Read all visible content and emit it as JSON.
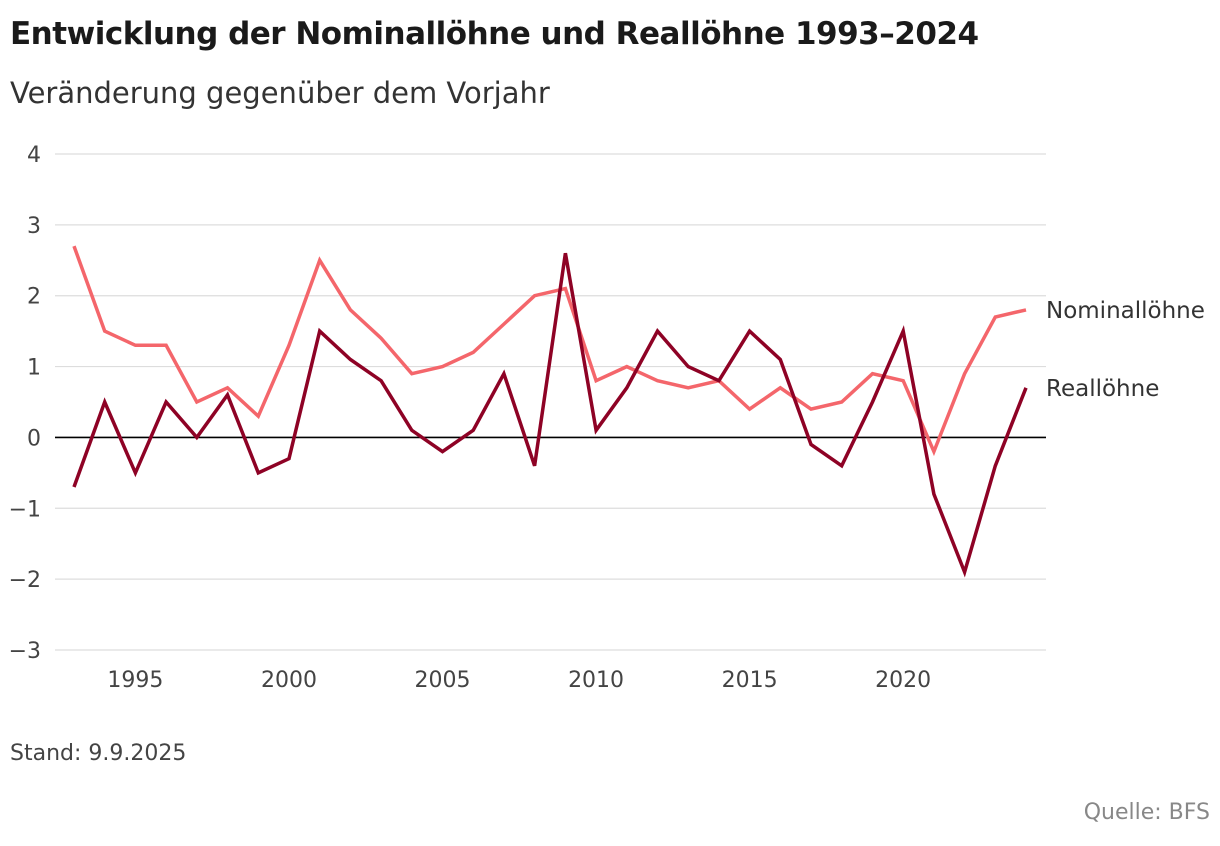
{
  "title": "Entwicklung der Nominallöhne und Reallöhne 1993–2024",
  "subtitle": "Veränderung gegenüber dem Vorjahr",
  "stand": "Stand: 9.9.2025",
  "source": "Quelle: BFS",
  "colors": {
    "nominal": "#f4666b",
    "real": "#8e0225",
    "grid": "#dddddd",
    "zero": "#000000"
  },
  "chart_data": {
    "type": "line",
    "title": "Entwicklung der Nominallöhne und Reallöhne 1993–2024",
    "subtitle": "Veränderung gegenüber dem Vorjahr",
    "xlabel": "",
    "ylabel": "",
    "ylim": [
      -3,
      4
    ],
    "xlim": [
      1993,
      2024
    ],
    "yticks": [
      4,
      3,
      2,
      1,
      0,
      -1,
      -2,
      -3
    ],
    "ytick_labels": [
      "4",
      "3",
      "2",
      "1",
      "0",
      "−1",
      "−2",
      "−3"
    ],
    "xticks": [
      1995,
      2000,
      2005,
      2010,
      2015,
      2020
    ],
    "xtick_labels": [
      "1995",
      "2000",
      "2005",
      "2010",
      "2015",
      "2020"
    ],
    "grid": true,
    "legend": "direct labels at right end of lines",
    "x": [
      1993,
      1994,
      1995,
      1996,
      1997,
      1998,
      1999,
      2000,
      2001,
      2002,
      2003,
      2004,
      2005,
      2006,
      2007,
      2008,
      2009,
      2010,
      2011,
      2012,
      2013,
      2014,
      2015,
      2016,
      2017,
      2018,
      2019,
      2020,
      2021,
      2022,
      2023,
      2024
    ],
    "series": [
      {
        "name": "Nominallöhne",
        "color": "#f4666b",
        "values": [
          2.7,
          1.5,
          1.3,
          1.3,
          0.5,
          0.7,
          0.3,
          1.3,
          2.5,
          1.8,
          1.4,
          0.9,
          1.0,
          1.2,
          1.6,
          2.0,
          2.1,
          0.8,
          1.0,
          0.8,
          0.7,
          0.8,
          0.4,
          0.7,
          0.4,
          0.5,
          0.9,
          0.8,
          -0.2,
          0.9,
          1.7,
          1.8
        ]
      },
      {
        "name": "Reallöhne",
        "color": "#8e0225",
        "values": [
          -0.7,
          0.5,
          -0.5,
          0.5,
          0.0,
          0.6,
          -0.5,
          -0.3,
          1.5,
          1.1,
          0.8,
          0.1,
          -0.2,
          0.1,
          0.9,
          -0.4,
          2.6,
          0.1,
          0.7,
          1.5,
          1.0,
          0.8,
          1.5,
          1.1,
          -0.1,
          -0.4,
          0.5,
          1.5,
          -0.8,
          -1.9,
          -0.4,
          0.7
        ]
      }
    ]
  }
}
